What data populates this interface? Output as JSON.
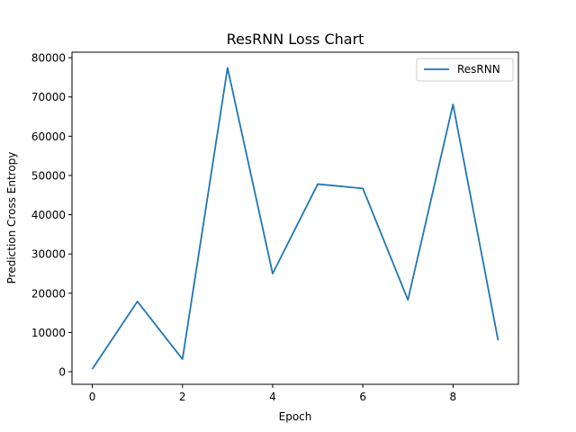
{
  "chart_data": {
    "type": "line",
    "title": "ResRNN Loss Chart",
    "xlabel": "Epoch",
    "ylabel": "Prediction Cross Entropy",
    "xlim": [
      -0.45,
      9.45
    ],
    "ylim": [
      -3200,
      81400
    ],
    "x_ticks": [
      0,
      2,
      4,
      6,
      8
    ],
    "y_ticks": [
      0,
      10000,
      20000,
      30000,
      40000,
      50000,
      60000,
      70000,
      80000
    ],
    "grid": false,
    "legend_position": "top-right",
    "colors": {
      "series": "#1f77b4"
    },
    "series": [
      {
        "name": "ResRNN",
        "x": [
          0,
          1,
          2,
          3,
          4,
          5,
          6,
          7,
          8,
          9
        ],
        "values": [
          700,
          17900,
          3200,
          77400,
          25000,
          47800,
          46700,
          18300,
          68100,
          8000
        ]
      }
    ]
  }
}
